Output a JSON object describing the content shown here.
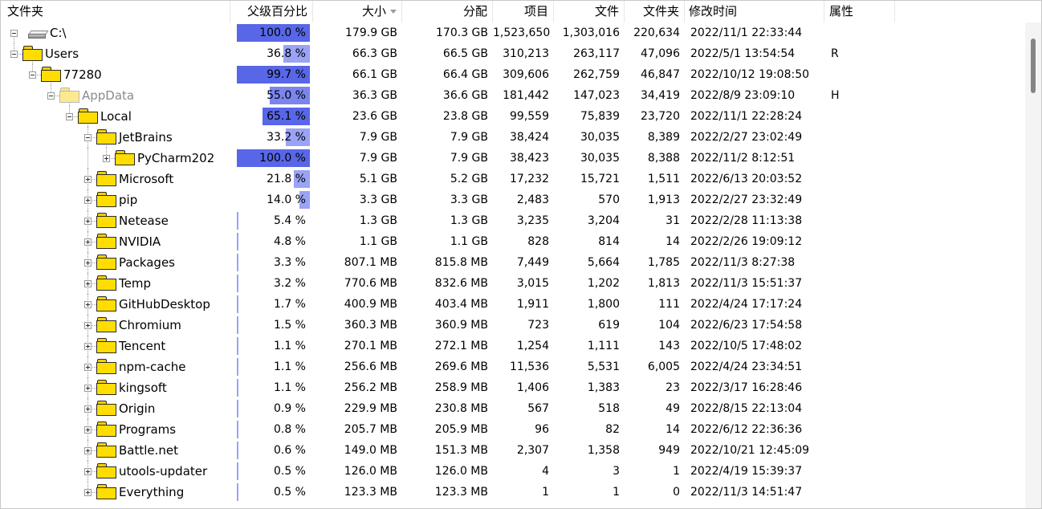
{
  "columns": {
    "folder": "文件夹",
    "parent_pct": "父级百分比",
    "size": "大小",
    "allocated": "分配",
    "items": "项目",
    "files": "文件",
    "folders": "文件夹",
    "modified": "修改时间",
    "attributes": "属性"
  },
  "sort": {
    "column": "size",
    "direction": "descending"
  },
  "colors": {
    "bar_light": "#9aa3f5",
    "bar_medium": "#7a85ee",
    "bar_dark": "#5866e8",
    "folder": "#ffdd00"
  },
  "rows": [
    {
      "name": "C:\\",
      "icon": "drive-icon",
      "depth": 0,
      "expander": "collapse",
      "pct": "100.0 %",
      "pct_value": 100.0,
      "size": "179.9 GB",
      "allocated": "170.3 GB",
      "items": "1,523,650",
      "files": "1,303,016",
      "folders": "220,634",
      "modified": "2022/11/1 22:33:44",
      "attr": ""
    },
    {
      "name": "Users",
      "icon": "folder-icon",
      "depth": 1,
      "expander": "collapse",
      "pct": "36.8 %",
      "pct_value": 36.8,
      "size": "66.3 GB",
      "allocated": "66.5 GB",
      "items": "310,213",
      "files": "263,117",
      "folders": "47,096",
      "modified": "2022/5/1 13:54:54",
      "attr": "R"
    },
    {
      "name": "77280",
      "icon": "folder-icon",
      "depth": 2,
      "expander": "collapse",
      "pct": "99.7 %",
      "pct_value": 99.7,
      "size": "66.1 GB",
      "allocated": "66.4 GB",
      "items": "309,606",
      "files": "262,759",
      "folders": "46,847",
      "modified": "2022/10/12 19:08:50",
      "attr": ""
    },
    {
      "name": "AppData",
      "icon": "folder-icon",
      "depth": 3,
      "expander": "collapse",
      "faded": true,
      "pct": "55.0 %",
      "pct_value": 55.0,
      "size": "36.3 GB",
      "allocated": "36.6 GB",
      "items": "181,442",
      "files": "147,023",
      "folders": "34,419",
      "modified": "2022/8/9 23:09:10",
      "attr": "H"
    },
    {
      "name": "Local",
      "icon": "folder-icon",
      "depth": 4,
      "expander": "collapse",
      "pct": "65.1 %",
      "pct_value": 65.1,
      "size": "23.6 GB",
      "allocated": "23.8 GB",
      "items": "99,559",
      "files": "75,839",
      "folders": "23,720",
      "modified": "2022/11/1 22:28:24",
      "attr": ""
    },
    {
      "name": "JetBrains",
      "icon": "folder-icon",
      "depth": 5,
      "expander": "collapse",
      "pct": "33.2 %",
      "pct_value": 33.2,
      "size": "7.9 GB",
      "allocated": "7.9 GB",
      "items": "38,424",
      "files": "30,035",
      "folders": "8,389",
      "modified": "2022/2/27 23:02:49",
      "attr": ""
    },
    {
      "name": "PyCharm202",
      "icon": "folder-icon",
      "depth": 6,
      "expander": "expand",
      "pct": "100.0 %",
      "pct_value": 100.0,
      "size": "7.9 GB",
      "allocated": "7.9 GB",
      "items": "38,423",
      "files": "30,035",
      "folders": "8,388",
      "modified": "2022/11/2 8:12:51",
      "attr": ""
    },
    {
      "name": "Microsoft",
      "icon": "folder-icon",
      "depth": 5,
      "expander": "expand",
      "pct": "21.8 %",
      "pct_value": 21.8,
      "size": "5.1 GB",
      "allocated": "5.2 GB",
      "items": "17,232",
      "files": "15,721",
      "folders": "1,511",
      "modified": "2022/6/13 20:03:52",
      "attr": ""
    },
    {
      "name": "pip",
      "icon": "folder-icon",
      "depth": 5,
      "expander": "expand",
      "pct": "14.0 %",
      "pct_value": 14.0,
      "size": "3.3 GB",
      "allocated": "3.3 GB",
      "items": "2,483",
      "files": "570",
      "folders": "1,913",
      "modified": "2022/2/27 23:32:49",
      "attr": ""
    },
    {
      "name": "Netease",
      "icon": "folder-icon",
      "depth": 5,
      "expander": "expand",
      "pct": "5.4 %",
      "pct_value": 5.4,
      "size": "1.3 GB",
      "allocated": "1.3 GB",
      "items": "3,235",
      "files": "3,204",
      "folders": "31",
      "modified": "2022/2/28 11:13:38",
      "attr": ""
    },
    {
      "name": "NVIDIA",
      "icon": "folder-icon",
      "depth": 5,
      "expander": "expand",
      "pct": "4.8 %",
      "pct_value": 4.8,
      "size": "1.1 GB",
      "allocated": "1.1 GB",
      "items": "828",
      "files": "814",
      "folders": "14",
      "modified": "2022/2/26 19:09:12",
      "attr": ""
    },
    {
      "name": "Packages",
      "icon": "folder-icon",
      "depth": 5,
      "expander": "expand",
      "pct": "3.3 %",
      "pct_value": 3.3,
      "size": "807.1 MB",
      "allocated": "815.8 MB",
      "items": "7,449",
      "files": "5,664",
      "folders": "1,785",
      "modified": "2022/11/3 8:27:38",
      "attr": ""
    },
    {
      "name": "Temp",
      "icon": "folder-icon",
      "depth": 5,
      "expander": "expand",
      "pct": "3.2 %",
      "pct_value": 3.2,
      "size": "770.6 MB",
      "allocated": "832.6 MB",
      "items": "3,015",
      "files": "1,202",
      "folders": "1,813",
      "modified": "2022/11/3 15:51:37",
      "attr": ""
    },
    {
      "name": "GitHubDesktop",
      "icon": "folder-icon",
      "depth": 5,
      "expander": "expand",
      "pct": "1.7 %",
      "pct_value": 1.7,
      "size": "400.9 MB",
      "allocated": "403.4 MB",
      "items": "1,911",
      "files": "1,800",
      "folders": "111",
      "modified": "2022/4/24 17:17:24",
      "attr": ""
    },
    {
      "name": "Chromium",
      "icon": "folder-icon",
      "depth": 5,
      "expander": "expand",
      "pct": "1.5 %",
      "pct_value": 1.5,
      "size": "360.3 MB",
      "allocated": "360.9 MB",
      "items": "723",
      "files": "619",
      "folders": "104",
      "modified": "2022/6/23 17:54:58",
      "attr": ""
    },
    {
      "name": "Tencent",
      "icon": "folder-icon",
      "depth": 5,
      "expander": "expand",
      "pct": "1.1 %",
      "pct_value": 1.1,
      "size": "270.1 MB",
      "allocated": "272.1 MB",
      "items": "1,254",
      "files": "1,111",
      "folders": "143",
      "modified": "2022/10/5 17:48:02",
      "attr": ""
    },
    {
      "name": "npm-cache",
      "icon": "folder-icon",
      "depth": 5,
      "expander": "expand",
      "pct": "1.1 %",
      "pct_value": 1.1,
      "size": "256.6 MB",
      "allocated": "269.6 MB",
      "items": "11,536",
      "files": "5,531",
      "folders": "6,005",
      "modified": "2022/4/24 23:34:51",
      "attr": ""
    },
    {
      "name": "kingsoft",
      "icon": "folder-icon",
      "depth": 5,
      "expander": "expand",
      "pct": "1.1 %",
      "pct_value": 1.1,
      "size": "256.2 MB",
      "allocated": "258.9 MB",
      "items": "1,406",
      "files": "1,383",
      "folders": "23",
      "modified": "2022/3/17 16:28:46",
      "attr": ""
    },
    {
      "name": "Origin",
      "icon": "folder-icon",
      "depth": 5,
      "expander": "expand",
      "pct": "0.9 %",
      "pct_value": 0.9,
      "size": "229.9 MB",
      "allocated": "230.8 MB",
      "items": "567",
      "files": "518",
      "folders": "49",
      "modified": "2022/8/15 22:13:04",
      "attr": ""
    },
    {
      "name": "Programs",
      "icon": "folder-icon",
      "depth": 5,
      "expander": "expand",
      "pct": "0.8 %",
      "pct_value": 0.8,
      "size": "205.7 MB",
      "allocated": "205.9 MB",
      "items": "96",
      "files": "82",
      "folders": "14",
      "modified": "2022/6/12 22:36:36",
      "attr": ""
    },
    {
      "name": "Battle.net",
      "icon": "folder-icon",
      "depth": 5,
      "expander": "expand",
      "pct": "0.6 %",
      "pct_value": 0.6,
      "size": "149.0 MB",
      "allocated": "151.3 MB",
      "items": "2,307",
      "files": "1,358",
      "folders": "949",
      "modified": "2022/10/21 12:45:09",
      "attr": ""
    },
    {
      "name": "utools-updater",
      "icon": "folder-icon",
      "depth": 5,
      "expander": "expand",
      "pct": "0.5 %",
      "pct_value": 0.5,
      "size": "126.0 MB",
      "allocated": "126.0 MB",
      "items": "4",
      "files": "3",
      "folders": "1",
      "modified": "2022/4/19 15:39:37",
      "attr": ""
    },
    {
      "name": "Everything",
      "icon": "folder-icon",
      "depth": 5,
      "expander": "expand",
      "pct": "0.5 %",
      "pct_value": 0.5,
      "size": "123.3 MB",
      "allocated": "123.3 MB",
      "items": "1",
      "files": "1",
      "folders": "0",
      "modified": "2022/11/3 14:51:47",
      "attr": ""
    }
  ]
}
